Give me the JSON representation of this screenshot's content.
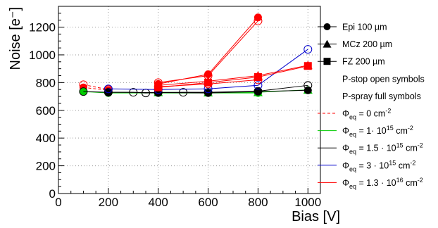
{
  "chart_data": {
    "type": "scatter",
    "xlabel": "Bias [V]",
    "ylabel": "Noise [e⁻]",
    "xlim": [
      0,
      1050
    ],
    "ylim": [
      0,
      1350
    ],
    "xticks": [
      0,
      200,
      400,
      600,
      800,
      1000
    ],
    "yticks": [
      0,
      200,
      400,
      600,
      800,
      1000,
      1200
    ],
    "x_tick_labels": [
      "0",
      "200",
      "400",
      "600",
      "800",
      "1000"
    ],
    "y_tick_labels": [
      "0",
      "200",
      "400",
      "600",
      "800",
      "1000",
      "1200"
    ],
    "grid": true,
    "legend_position": "right",
    "colors": {
      "fluence_0": "#ff0000",
      "fluence_1e15": "#00cc00",
      "fluence_1_5e15": "#000000",
      "fluence_3e15": "#0000cc",
      "fluence_1_3e16": "#ff0000"
    },
    "legend": [
      {
        "marker": "circle-filled",
        "label": "Epi 100 µm"
      },
      {
        "marker": "triangle-filled",
        "label": "MCz 200 µm"
      },
      {
        "marker": "square-filled",
        "label": "FZ 200 µm"
      },
      {
        "marker": "none",
        "label": "P-stop open symbols"
      },
      {
        "marker": "none",
        "label": "P-spray full symbols"
      },
      {
        "marker": "dashed-line",
        "color": "#ff0000",
        "label": "Φeq = 0 cm⁻²",
        "sym": "Φ",
        "sub": "eq",
        "base": " = 0 cm",
        "sup": "-2"
      },
      {
        "marker": "line",
        "color": "#00cc00",
        "label": "Φeq = 1· 10¹⁵ cm⁻²",
        "sym": "Φ",
        "sub": "eq",
        "base": " = 1· 10",
        "sup1": "15",
        "base2": " cm",
        "sup2": "-2"
      },
      {
        "marker": "line",
        "color": "#000000",
        "label": "Φeq = 1.5 · 10¹⁵ cm⁻²",
        "sym": "Φ",
        "sub": "eq",
        "base": " = 1.5 · 10",
        "sup1": "15",
        "base2": " cm",
        "sup2": "-2"
      },
      {
        "marker": "line",
        "color": "#0000cc",
        "label": "Φeq = 3 · 10¹⁵ cm⁻²",
        "sym": "Φ",
        "sub": "eq",
        "base": " = 3 · 10",
        "sup1": "15",
        "base2": " cm",
        "sup2": "-2"
      },
      {
        "marker": "line",
        "color": "#ff0000",
        "label": "Φeq = 1.3 · 10¹⁶ cm⁻²",
        "sym": "Φ",
        "sub": "eq",
        "base": " = 1.3 · 10",
        "sup1": "16",
        "base2": " cm",
        "sup2": "-2"
      }
    ],
    "series": [
      {
        "color": "#ff0000",
        "dash": true,
        "marker": "circle-open",
        "x": [
          100,
          200
        ],
        "y": [
          785,
          750
        ]
      },
      {
        "color": "#ff0000",
        "dash": true,
        "marker": "circle-filled",
        "x": [
          100,
          200
        ],
        "y": [
          765,
          745
        ]
      },
      {
        "color": "#00cc00",
        "marker": "circle-filled",
        "x": [
          100,
          200,
          400,
          600,
          800
        ],
        "y": [
          735,
          725,
          725,
          725,
          725
        ]
      },
      {
        "color": "#00cc00",
        "marker": "triangle-filled",
        "x": [
          400,
          600,
          800,
          1000
        ],
        "y": [
          730,
          728,
          730,
          748
        ]
      },
      {
        "color": "#000000",
        "marker": "circle-open",
        "x": [
          100,
          200,
          300,
          350,
          400,
          500,
          600,
          800,
          1000
        ],
        "y": [
          735,
          730,
          730,
          725,
          728,
          730,
          730,
          738,
          780
        ]
      },
      {
        "color": "#000000",
        "marker": "circle-filled",
        "x": [
          200,
          400,
          600,
          800,
          1000
        ],
        "y": [
          730,
          728,
          725,
          735,
          745
        ]
      },
      {
        "color": "#0000cc",
        "marker": "circle-open",
        "x": [
          200,
          400,
          600,
          800,
          1000
        ],
        "y": [
          755,
          750,
          755,
          780,
          1040
        ]
      },
      {
        "color": "#ff0000",
        "marker": "circle-open",
        "x": [
          400,
          600,
          800
        ],
        "y": [
          800,
          850,
          1245
        ]
      },
      {
        "color": "#ff0000",
        "marker": "circle-filled",
        "x": [
          400,
          600,
          800
        ],
        "y": [
          790,
          860,
          1270
        ]
      },
      {
        "color": "#ff0000",
        "marker": "triangle-filled",
        "x": [
          400,
          600,
          800,
          1000
        ],
        "y": [
          780,
          810,
          850,
          925
        ]
      },
      {
        "color": "#ff0000",
        "marker": "square-filled",
        "x": [
          400,
          600,
          800,
          1000
        ],
        "y": [
          765,
          800,
          840,
          920
        ]
      },
      {
        "color": "#ff0000",
        "marker": "circle-open",
        "x": [
          400,
          600,
          800
        ],
        "y": [
          770,
          790,
          820
        ]
      }
    ]
  }
}
